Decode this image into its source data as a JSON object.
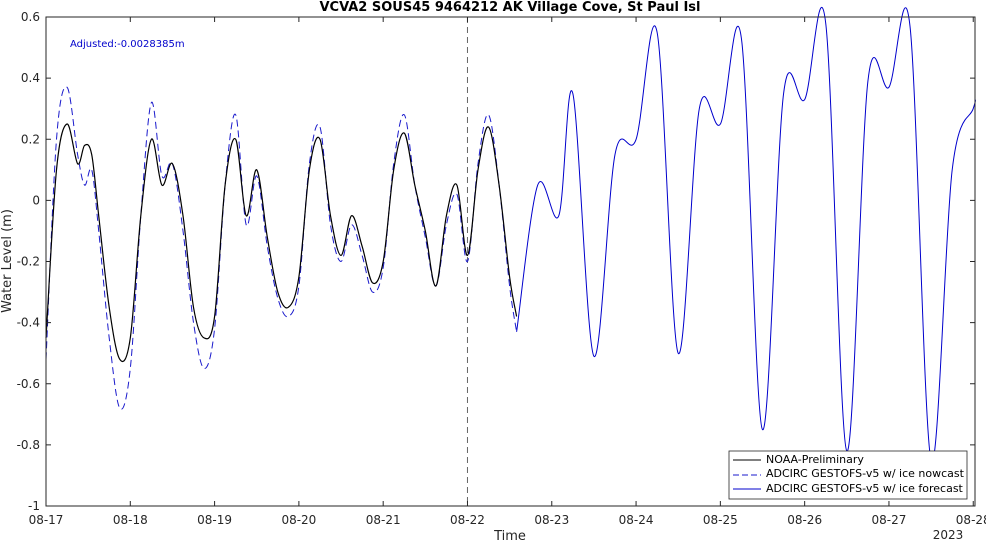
{
  "chart_data": {
    "type": "line",
    "title": "VCVA2 SOUS45 9464212 AK Village Cove, St Paul Isl",
    "xlabel": "Time",
    "ylabel": "Water Level (m)",
    "ylim": [
      -1,
      0.6
    ],
    "yticks": [
      -1,
      -0.8,
      -0.6,
      -0.4,
      -0.2,
      0,
      0.2,
      0.4,
      0.6
    ],
    "ytick_labels": [
      "-1",
      "-0.8",
      "-0.6",
      "-0.4",
      "-0.2",
      "0",
      "0.2",
      "0.4",
      "0.6"
    ],
    "xlim": [
      "2023-08-17",
      "2023-08-28 00:30"
    ],
    "xtick_labels": [
      "08-17",
      "08-18",
      "08-19",
      "08-20",
      "08-21",
      "08-22",
      "08-23",
      "08-24",
      "08-25",
      "08-26",
      "08-27",
      "08-28"
    ],
    "year_label": "2023",
    "nowcast_forecast_divider": "2023-08-22",
    "annotation": "Adjusted:-0.0028385m",
    "legend_placement": "bottom-right",
    "series": [
      {
        "name": "NOAA-Preliminary",
        "color": "#000000",
        "style": "solid",
        "x": [
          "2023-08-17 00:00",
          "2023-08-17 03:00",
          "2023-08-17 06:00",
          "2023-08-17 09:00",
          "2023-08-17 11:00",
          "2023-08-17 13:00",
          "2023-08-17 15:00",
          "2023-08-17 18:00",
          "2023-08-17 21:00",
          "2023-08-18 00:00",
          "2023-08-18 03:00",
          "2023-08-18 06:00",
          "2023-08-18 09:00",
          "2023-08-18 12:00",
          "2023-08-18 15:00",
          "2023-08-18 18:00",
          "2023-08-18 21:00",
          "2023-08-19 00:00",
          "2023-08-19 03:00",
          "2023-08-19 06:00",
          "2023-08-19 09:00",
          "2023-08-19 12:00",
          "2023-08-19 15:00",
          "2023-08-19 18:00",
          "2023-08-19 21:00",
          "2023-08-20 00:00",
          "2023-08-20 03:00",
          "2023-08-20 06:00",
          "2023-08-20 09:00",
          "2023-08-20 12:00",
          "2023-08-20 15:00",
          "2023-08-20 18:00",
          "2023-08-20 21:00",
          "2023-08-21 00:00",
          "2023-08-21 03:00",
          "2023-08-21 06:00",
          "2023-08-21 09:00",
          "2023-08-21 12:00",
          "2023-08-21 15:00",
          "2023-08-21 18:00",
          "2023-08-21 21:00",
          "2023-08-22 00:00",
          "2023-08-22 03:00",
          "2023-08-22 06:00",
          "2023-08-22 09:00",
          "2023-08-22 12:00",
          "2023-08-22 14:00"
        ],
        "y": [
          -0.45,
          0.1,
          0.25,
          0.12,
          0.18,
          0.15,
          -0.05,
          -0.35,
          -0.52,
          -0.45,
          -0.05,
          0.2,
          0.05,
          0.12,
          -0.05,
          -0.35,
          -0.45,
          -0.38,
          0.05,
          0.2,
          -0.05,
          0.1,
          -0.12,
          -0.3,
          -0.35,
          -0.25,
          0.1,
          0.2,
          -0.05,
          -0.18,
          -0.05,
          -0.15,
          -0.27,
          -0.2,
          0.1,
          0.22,
          0.05,
          -0.1,
          -0.28,
          -0.05,
          0.05,
          -0.18,
          0.1,
          0.24,
          0.05,
          -0.25,
          -0.38
        ]
      },
      {
        "name": "ADCIRC GESTOFS-v5 w/ ice nowcast",
        "color": "#1a1acc",
        "style": "dashed",
        "x": [
          "2023-08-17 00:00",
          "2023-08-17 03:00",
          "2023-08-17 06:00",
          "2023-08-17 09:00",
          "2023-08-17 11:00",
          "2023-08-17 13:00",
          "2023-08-17 15:00",
          "2023-08-17 18:00",
          "2023-08-17 21:00",
          "2023-08-18 00:00",
          "2023-08-18 03:00",
          "2023-08-18 06:00",
          "2023-08-18 09:00",
          "2023-08-18 12:00",
          "2023-08-18 15:00",
          "2023-08-18 18:00",
          "2023-08-18 21:00",
          "2023-08-19 00:00",
          "2023-08-19 03:00",
          "2023-08-19 06:00",
          "2023-08-19 09:00",
          "2023-08-19 12:00",
          "2023-08-19 15:00",
          "2023-08-19 18:00",
          "2023-08-19 21:00",
          "2023-08-20 00:00",
          "2023-08-20 03:00",
          "2023-08-20 06:00",
          "2023-08-20 09:00",
          "2023-08-20 12:00",
          "2023-08-20 15:00",
          "2023-08-20 18:00",
          "2023-08-20 21:00",
          "2023-08-21 00:00",
          "2023-08-21 03:00",
          "2023-08-21 06:00",
          "2023-08-21 09:00",
          "2023-08-21 12:00",
          "2023-08-21 15:00",
          "2023-08-21 18:00",
          "2023-08-21 21:00",
          "2023-08-22 00:00",
          "2023-08-22 03:00",
          "2023-08-22 06:00",
          "2023-08-22 09:00",
          "2023-08-22 12:00",
          "2023-08-22 14:00"
        ],
        "y": [
          -0.52,
          0.2,
          0.37,
          0.15,
          0.05,
          0.1,
          -0.1,
          -0.45,
          -0.68,
          -0.55,
          -0.05,
          0.32,
          0.08,
          0.12,
          -0.1,
          -0.4,
          -0.55,
          -0.42,
          0.05,
          0.28,
          -0.08,
          0.08,
          -0.15,
          -0.32,
          -0.38,
          -0.28,
          0.12,
          0.24,
          -0.08,
          -0.2,
          -0.08,
          -0.18,
          -0.3,
          -0.22,
          0.12,
          0.28,
          0.05,
          -0.12,
          -0.28,
          -0.08,
          0.02,
          -0.2,
          0.12,
          0.28,
          0.05,
          -0.28,
          -0.43
        ]
      },
      {
        "name": "ADCIRC GESTOFS-v5 w/ ice forecast",
        "color": "#0000cc",
        "style": "solid",
        "x": [
          "2023-08-22 14:00",
          "2023-08-22 20:00",
          "2023-08-23 02:00",
          "2023-08-23 06:00",
          "2023-08-23 12:00",
          "2023-08-23 18:00",
          "2023-08-24 00:00",
          "2023-08-24 06:00",
          "2023-08-24 12:00",
          "2023-08-24 18:00",
          "2023-08-25 00:00",
          "2023-08-25 06:00",
          "2023-08-25 12:00",
          "2023-08-25 18:00",
          "2023-08-26 00:00",
          "2023-08-26 06:00",
          "2023-08-26 12:00",
          "2023-08-26 18:00",
          "2023-08-27 00:00",
          "2023-08-27 06:00",
          "2023-08-27 12:00",
          "2023-08-27 18:00",
          "2023-08-28 00:00",
          "2023-08-28 00:30"
        ],
        "y": [
          -0.43,
          0.05,
          -0.05,
          0.35,
          -0.51,
          0.15,
          0.2,
          0.55,
          -0.5,
          0.3,
          0.25,
          0.53,
          -0.75,
          0.35,
          0.33,
          0.58,
          -0.82,
          0.39,
          0.37,
          0.57,
          -0.85,
          0.1,
          0.3,
          0.33
        ]
      }
    ]
  }
}
